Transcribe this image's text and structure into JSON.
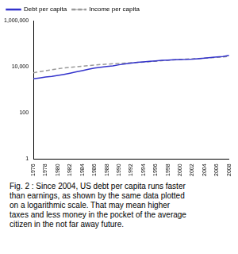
{
  "chart_data": {
    "type": "line",
    "categories": [
      "1976",
      null,
      "1978",
      null,
      "1980",
      null,
      "1982",
      null,
      "1984",
      null,
      "1986",
      null,
      "1988",
      null,
      "1990",
      null,
      "1992",
      null,
      "1994",
      null,
      "1996",
      null,
      "1998",
      null,
      "2000",
      null,
      "2002",
      null,
      "2004",
      null,
      "2006",
      null,
      "2008"
    ],
    "series": [
      {
        "name": "Debt per capita",
        "color": "#3333cc",
        "line_style": "solid",
        "marker": "none",
        "values": [
          3000,
          3300,
          3600,
          3800,
          4200,
          4700,
          5300,
          6000,
          6800,
          7800,
          8800,
          9600,
          10300,
          11000,
          12200,
          13300,
          14500,
          15500,
          16400,
          17400,
          18100,
          18900,
          19600,
          20300,
          20800,
          20900,
          21300,
          22300,
          23500,
          25000,
          26500,
          28000,
          31000
        ]
      },
      {
        "name": "Income per capita",
        "color": "#999999",
        "line_style": "dashed",
        "marker": "none",
        "values": [
          5500,
          6100,
          6800,
          7500,
          8200,
          8900,
          9400,
          10000,
          10700,
          11300,
          11900,
          12500,
          13000,
          13500,
          14000,
          14400,
          14900,
          15400,
          16000,
          16700,
          17400,
          18300,
          19200,
          20000,
          21000,
          21500,
          22000,
          22800,
          23500,
          24500,
          25700,
          26800,
          28000
        ]
      }
    ],
    "log": "y",
    "ylim": [
      1,
      1000000
    ],
    "yticks": [
      1,
      100,
      {
        "value": 10000,
        "label": "10,000"
      },
      {
        "value": 1000000,
        "label": "1,000,000"
      }
    ],
    "grid": false,
    "legend": "top-left"
  },
  "caption": "Fig. 2 : Since 2004, US debt per capita runs faster than earnings, as shown by the same data plotted on a logarithmic scale. That may mean higher taxes and less money in the pocket of the average citizen in the not far away future."
}
